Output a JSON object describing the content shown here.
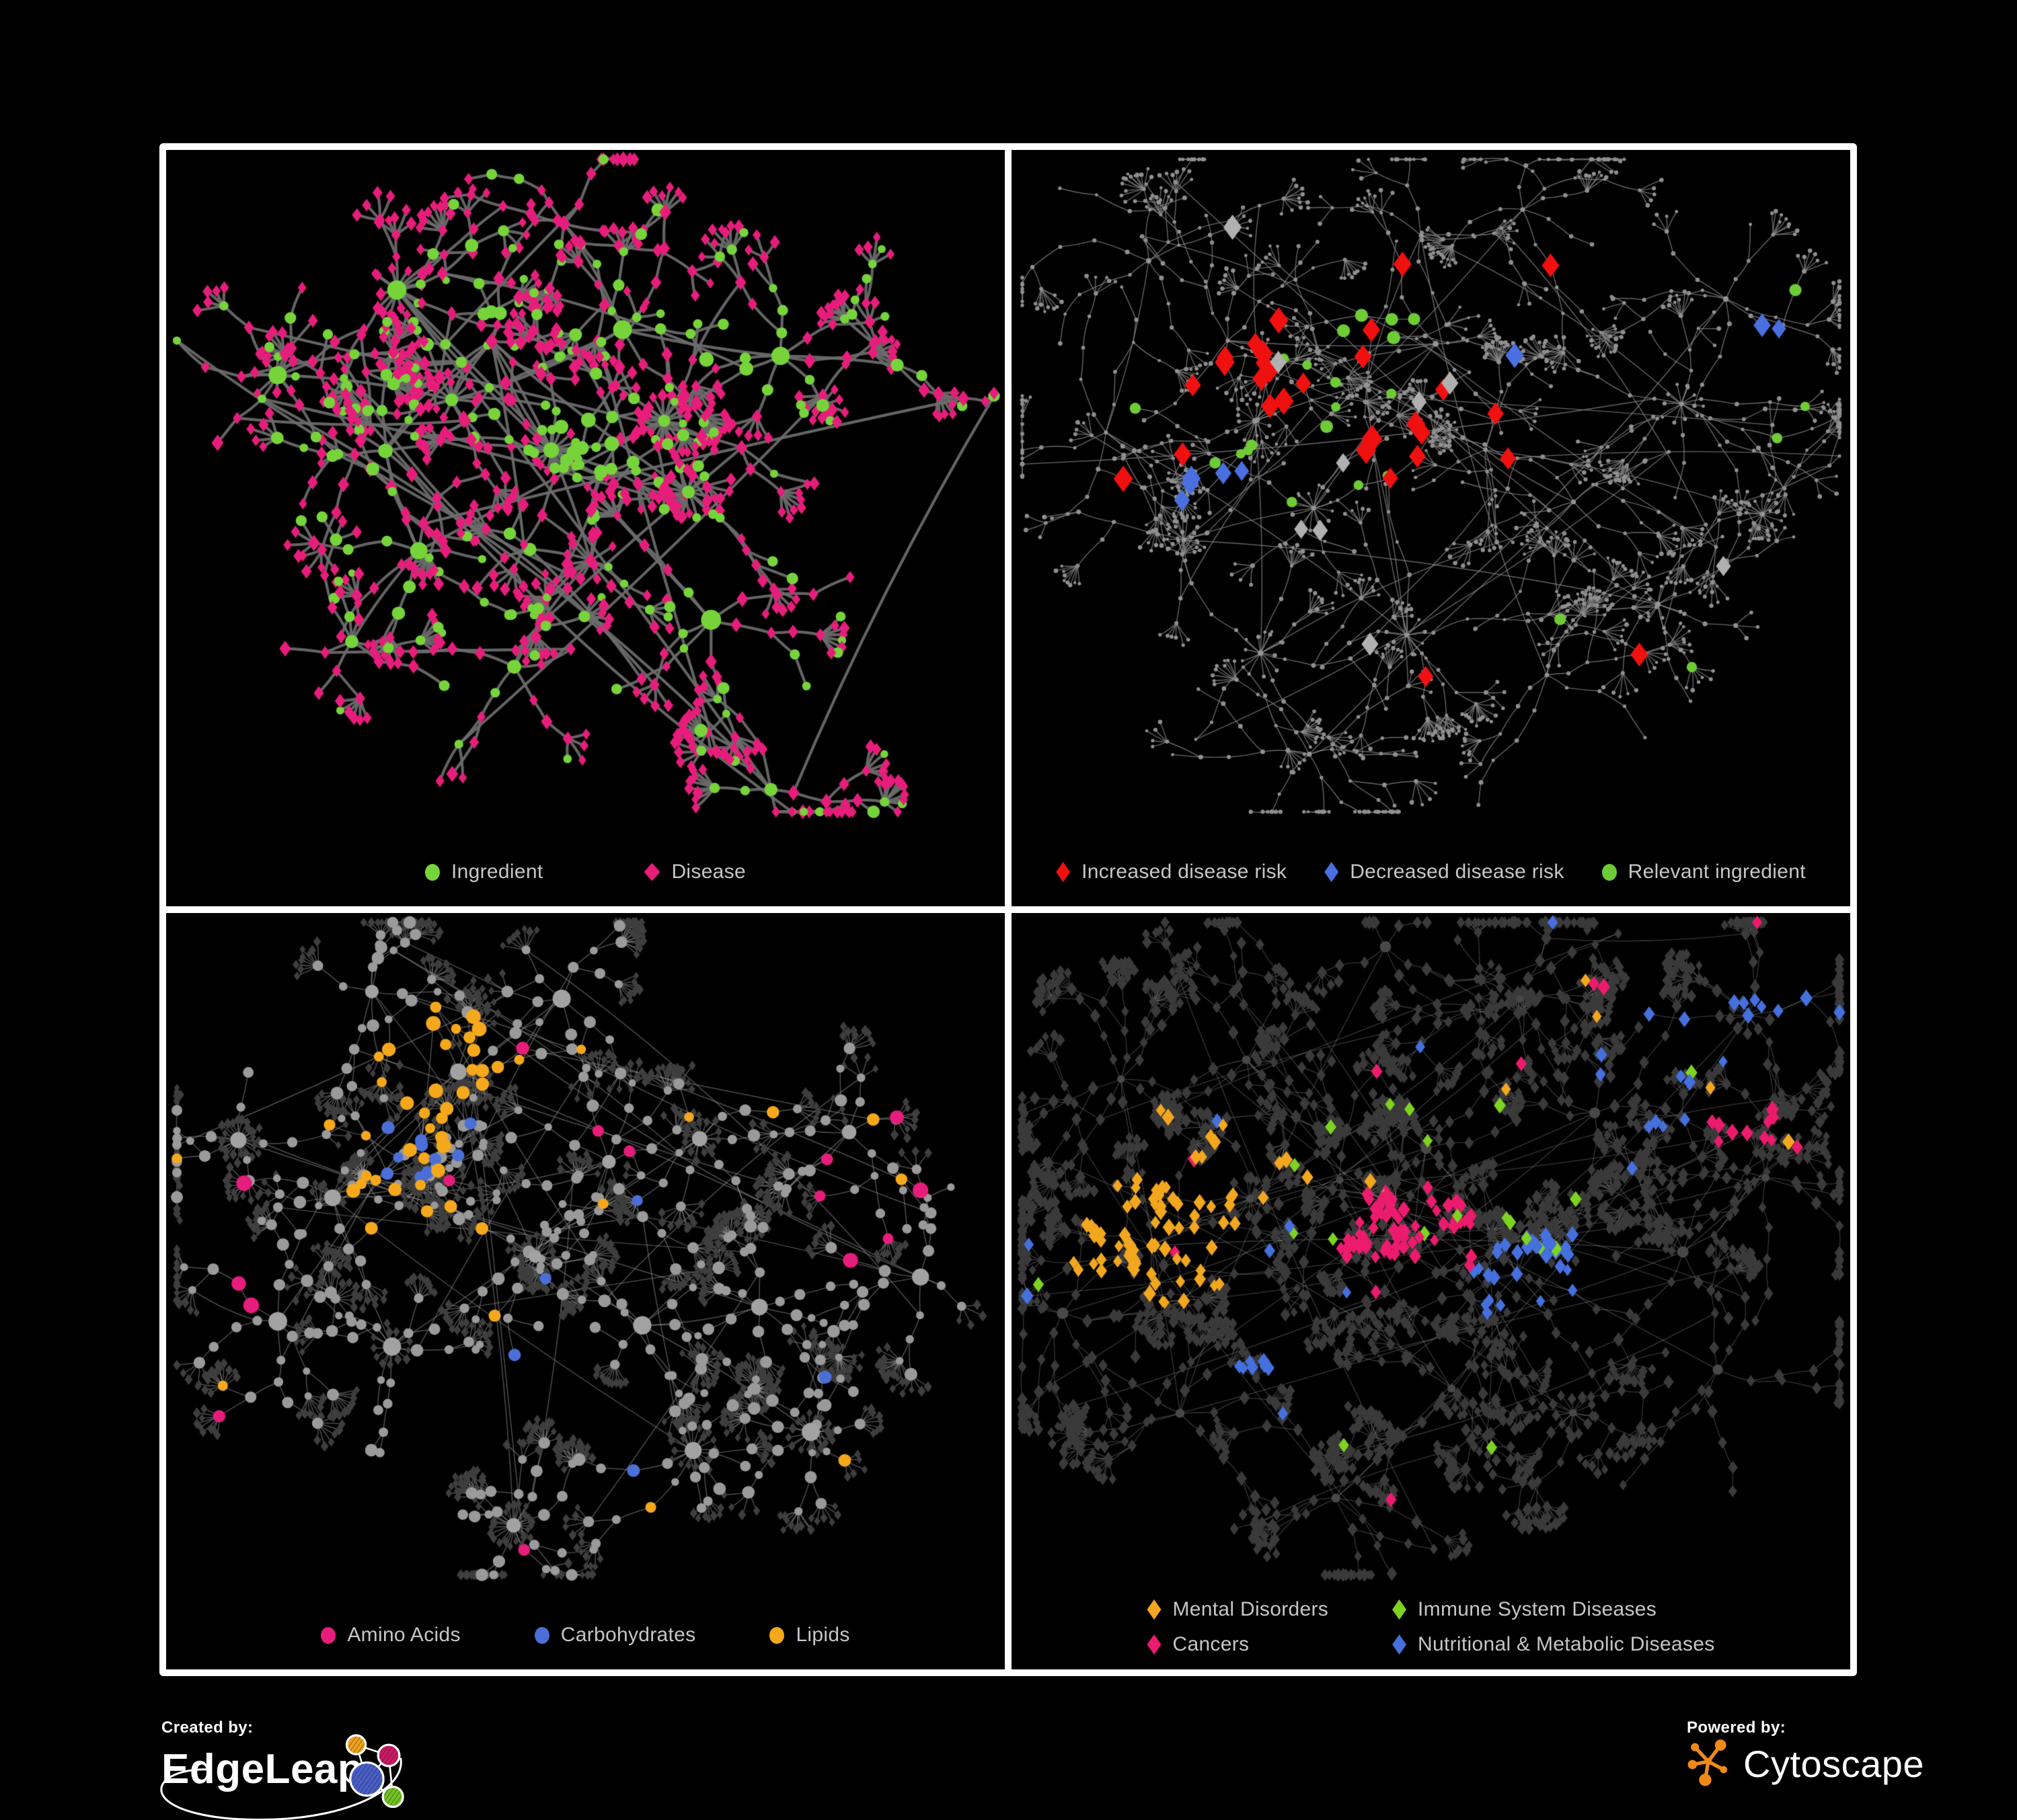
{
  "figure": {
    "background": "#000000",
    "panel_border_color": "#ffffff",
    "legend_text_color": "#c6c6c6"
  },
  "footer": {
    "created_by": {
      "label": "Created by:",
      "name": "EdgeLeap"
    },
    "powered_by": {
      "label": "Powered by:",
      "name": "Cytoscape"
    }
  },
  "panels": [
    {
      "name": "ingredient-disease-network",
      "legend": [
        {
          "label": "Ingredient",
          "shape": "circle",
          "color": "#77d33a"
        },
        {
          "label": "Disease",
          "shape": "diamond",
          "color": "#e71d7b"
        }
      ],
      "network": {
        "seed": 7,
        "hubs": [
          [
            0.4,
            0.3
          ],
          [
            0.25,
            0.45
          ],
          [
            0.34,
            0.38
          ],
          [
            0.46,
            0.46
          ],
          [
            0.3,
            0.6
          ],
          [
            0.55,
            0.28
          ],
          [
            0.5,
            0.62
          ],
          [
            0.63,
            0.52
          ],
          [
            0.42,
            0.78
          ],
          [
            0.28,
            0.2
          ],
          [
            0.6,
            0.4
          ],
          [
            0.74,
            0.32
          ],
          [
            0.88,
            0.33
          ],
          [
            0.72,
            0.96
          ],
          [
            0.66,
            0.7
          ],
          [
            0.22,
            0.74
          ],
          [
            0.47,
            0.1
          ],
          [
            0.13,
            0.33
          ]
        ],
        "branches": [
          4,
          7
        ],
        "steps": [
          2,
          4
        ],
        "seg": [
          32,
          62
        ],
        "fork": 0.26,
        "fanP": 0.5,
        "fan": [
          3,
          8
        ],
        "fanArc": 1.8,
        "ringP": 0.4,
        "ring": [
          8,
          18
        ],
        "leafDist": 32,
        "cross": 26,
        "edge": {
          "color": "#6c6c6c",
          "width": 4.2,
          "alpha": 0.92
        },
        "base": {
          "leaf": {
            "shape": "diamond",
            "color": "#e71d7b",
            "size": [
              6,
              8.5
            ]
          },
          "branch": {
            "shape": "diamond",
            "color": "#e71d7b",
            "size": [
              6.5,
              9.5
            ]
          },
          "hub": {
            "shape": "circle",
            "color": "#77d33a",
            "size": [
              9,
              15
            ]
          }
        },
        "mixes": [
          {
            "kinds": [
              "branch"
            ],
            "p": 0.32,
            "shape": "circle",
            "color": "#77d33a",
            "size": [
              6,
              10
            ]
          },
          {
            "kinds": [
              "leaf"
            ],
            "p": 0.14,
            "shape": "circle",
            "color": "#77d33a",
            "size": [
              5.5,
              8.5
            ]
          },
          {
            "kinds": [
              "hub"
            ],
            "p": 0.22,
            "shape": "diamond",
            "color": "#e71d7b",
            "size": [
              9,
              12
            ]
          }
        ],
        "overlays": [
          {
            "shape": "circle",
            "color": "#77d33a",
            "size": [
              6,
              11
            ],
            "clusters": [
              [
                0.5,
                0.44,
                0.055,
                0.85
              ],
              [
                0.67,
                0.29,
                0.05,
                0.7
              ]
            ],
            "scatter": 0
          }
        ]
      }
    },
    {
      "name": "disease-risk-network",
      "legend": [
        {
          "label": "Increased disease risk",
          "shape": "diamond",
          "color": "#f01010"
        },
        {
          "label": "Decreased disease risk",
          "shape": "diamond",
          "color": "#4a6fe0"
        },
        {
          "label": "Relevant ingredient",
          "shape": "circle",
          "color": "#6ecb35"
        }
      ],
      "network": {
        "seed": 23,
        "hubs": [
          [
            0.3,
            0.42
          ],
          [
            0.42,
            0.36
          ],
          [
            0.51,
            0.3
          ],
          [
            0.36,
            0.53
          ],
          [
            0.25,
            0.3
          ],
          [
            0.56,
            0.46
          ],
          [
            0.68,
            0.52
          ],
          [
            0.48,
            0.13
          ],
          [
            0.2,
            0.6
          ],
          [
            0.8,
            0.38
          ],
          [
            0.46,
            0.74
          ],
          [
            0.63,
            0.8
          ],
          [
            0.12,
            0.42
          ],
          [
            0.86,
            0.22
          ],
          [
            0.3,
            0.76
          ],
          [
            0.76,
            0.68
          ],
          [
            0.6,
            0.08
          ],
          [
            0.16,
            0.16
          ],
          [
            0.35,
            0.92
          ],
          [
            0.9,
            0.55
          ]
        ],
        "branches": [
          4,
          7
        ],
        "steps": [
          3,
          5
        ],
        "seg": [
          30,
          56
        ],
        "fork": 0.3,
        "fanP": 0.55,
        "fan": [
          3,
          9
        ],
        "fanArc": 1.6,
        "ringP": 0.35,
        "ring": [
          8,
          16
        ],
        "leafDist": 28,
        "cross": 18,
        "edge": {
          "color": "#8a8a8a",
          "width": 1.4,
          "alpha": 0.75
        },
        "base": {
          "leaf": {
            "shape": "circle",
            "color": "#8f8f8f",
            "size": [
              2.2,
              3.4
            ]
          },
          "branch": {
            "shape": "circle",
            "color": "#8f8f8f",
            "size": [
              2.4,
              3.6
            ]
          },
          "hub": {
            "shape": "circle",
            "color": "#949494",
            "size": [
              3,
              4.6
            ]
          }
        },
        "mixes": [],
        "overlays": [
          {
            "shape": "diamond",
            "color": "#f01010",
            "size": [
              12,
              16
            ],
            "clusters": [
              [
                0.34,
                0.4,
                0.16,
                0.22
              ],
              [
                0.52,
                0.44,
                0.1,
                0.15
              ]
            ],
            "scatter": 5,
            "kinds": [
              "branch",
              "hub"
            ]
          },
          {
            "shape": "diamond",
            "color": "#4a6fe0",
            "size": [
              11,
              15
            ],
            "clusters": [
              [
                0.25,
                0.5,
                0.06,
                0.45
              ]
            ],
            "scatter": 2,
            "fixed": [
              [
                0.895,
                0.265
              ],
              [
                0.915,
                0.27
              ]
            ],
            "kinds": [
              "branch",
              "hub"
            ]
          },
          {
            "shape": "diamond",
            "color": "#b0b0b0",
            "size": [
              11,
              15
            ],
            "clusters": [
              [
                0.42,
                0.46,
                0.18,
                0.05
              ]
            ],
            "scatter": 4,
            "kinds": [
              "branch",
              "hub"
            ]
          },
          {
            "shape": "circle",
            "color": "#6ecb35",
            "size": [
              7,
              10
            ],
            "clusters": [
              [
                0.35,
                0.4,
                0.22,
                0.1
              ]
            ],
            "scatter": 6,
            "kinds": [
              "branch",
              "hub"
            ]
          }
        ]
      }
    },
    {
      "name": "macronutrient-network",
      "legend": [
        {
          "label": "Amino Acids",
          "shape": "circle",
          "color": "#e71d7b"
        },
        {
          "label": "Carbohydrates",
          "shape": "circle",
          "color": "#4b6fd6"
        },
        {
          "label": "Lipids",
          "shape": "circle",
          "color": "#f5a81c"
        }
      ],
      "network": {
        "seed": 41,
        "hubs": [
          [
            0.19,
            0.43
          ],
          [
            0.3,
            0.41
          ],
          [
            0.34,
            0.24
          ],
          [
            0.43,
            0.52
          ],
          [
            0.28,
            0.65
          ],
          [
            0.52,
            0.38
          ],
          [
            0.64,
            0.33
          ],
          [
            0.57,
            0.63
          ],
          [
            0.42,
            0.92
          ],
          [
            0.7,
            0.6
          ],
          [
            0.82,
            0.33
          ],
          [
            0.14,
            0.62
          ],
          [
            0.48,
            0.13
          ],
          [
            0.25,
            0.13
          ],
          [
            0.62,
            0.82
          ],
          [
            0.78,
            0.78
          ],
          [
            0.9,
            0.55
          ],
          [
            0.08,
            0.35
          ]
        ],
        "branches": [
          5,
          8
        ],
        "steps": [
          2,
          4
        ],
        "seg": [
          30,
          58
        ],
        "fork": 0.3,
        "fanP": 0.6,
        "fan": [
          4,
          10
        ],
        "fanArc": 1.9,
        "ringP": 0.5,
        "ring": [
          12,
          28
        ],
        "leafDist": 28,
        "cross": 28,
        "edge": {
          "color": "#9b9b9b",
          "width": 1.5,
          "alpha": 0.5
        },
        "base": {
          "leaf": {
            "shape": "diamond",
            "color": "#3e3e3e",
            "size": [
              4.5,
              6.5
            ]
          },
          "branch": {
            "shape": "circle",
            "color": "#9a9a9a",
            "size": [
              5.5,
              9.5
            ]
          },
          "hub": {
            "shape": "circle",
            "color": "#a2a2a2",
            "size": [
              9,
              14
            ]
          }
        },
        "mixes": [],
        "overlays": [
          {
            "shape": "circle",
            "color": "#f5a81c",
            "size": [
              7,
              11
            ],
            "clusters": [
              [
                0.34,
                0.23,
                0.09,
                0.8
              ],
              [
                0.3,
                0.4,
                0.14,
                0.22
              ]
            ],
            "scatter": 16,
            "kinds": [
              "branch",
              "hub"
            ]
          },
          {
            "shape": "circle",
            "color": "#4b6fd6",
            "size": [
              7,
              10
            ],
            "clusters": [
              [
                0.3,
                0.34,
                0.07,
                0.3
              ]
            ],
            "scatter": 6,
            "kinds": [
              "branch",
              "hub"
            ]
          },
          {
            "shape": "circle",
            "color": "#e71d7b",
            "size": [
              8,
              12
            ],
            "clusters": [],
            "scatter": 15,
            "kinds": [
              "branch",
              "hub"
            ]
          }
        ]
      }
    },
    {
      "name": "disease-category-network",
      "legend": [
        {
          "label": "Mental Disorders",
          "shape": "diamond",
          "color": "#f2a71f"
        },
        {
          "label": "Immune System Diseases",
          "shape": "diamond",
          "color": "#7ed321"
        },
        {
          "label": "Cancers",
          "shape": "diamond",
          "color": "#ed1b6d"
        },
        {
          "label": "Nutritional & Metabolic Diseases",
          "shape": "diamond",
          "color": "#4570dd"
        }
      ],
      "network": {
        "seed": 59,
        "hubs": [
          [
            0.17,
            0.5
          ],
          [
            0.29,
            0.44
          ],
          [
            0.4,
            0.4
          ],
          [
            0.5,
            0.36
          ],
          [
            0.47,
            0.53
          ],
          [
            0.61,
            0.54
          ],
          [
            0.7,
            0.3
          ],
          [
            0.8,
            0.52
          ],
          [
            0.28,
            0.22
          ],
          [
            0.52,
            0.72
          ],
          [
            0.2,
            0.76
          ],
          [
            0.68,
            0.76
          ],
          [
            0.88,
            0.15
          ],
          [
            0.9,
            0.4
          ],
          [
            0.12,
            0.25
          ],
          [
            0.38,
            0.88
          ],
          [
            0.6,
            0.13
          ],
          [
            0.85,
            0.7
          ],
          [
            0.45,
            0.06
          ],
          [
            0.05,
            0.6
          ]
        ],
        "branches": [
          5,
          8
        ],
        "steps": [
          3,
          5
        ],
        "seg": [
          28,
          54
        ],
        "fork": 0.32,
        "fanP": 0.6,
        "fan": [
          4,
          10
        ],
        "fanArc": 1.8,
        "ringP": 0.45,
        "ring": [
          10,
          22
        ],
        "leafDist": 26,
        "cross": 26,
        "edge": {
          "color": "#aaaaaa",
          "width": 1.3,
          "alpha": 0.32
        },
        "base": {
          "leaf": {
            "shape": "diamond",
            "color": "#3a3a3a",
            "size": [
              5.5,
              8
            ]
          },
          "branch": {
            "shape": "diamond",
            "color": "#3a3a3a",
            "size": [
              6,
              8.5
            ]
          },
          "hub": {
            "shape": "circle",
            "color": "#484848",
            "size": [
              5.5,
              8.5
            ]
          }
        },
        "mixes": [],
        "overlays": [
          {
            "shape": "diamond",
            "color": "#f2a71f",
            "size": [
              7,
              10
            ],
            "clusters": [
              [
                0.17,
                0.5,
                0.1,
                0.85
              ],
              [
                0.27,
                0.4,
                0.09,
                0.25
              ]
            ],
            "scatter": 10
          },
          {
            "shape": "diamond",
            "color": "#ed1b6d",
            "size": [
              7,
              10
            ],
            "clusters": [
              [
                0.47,
                0.5,
                0.09,
                0.55
              ],
              [
                0.87,
                0.32,
                0.045,
                0.6
              ]
            ],
            "scatter": 9
          },
          {
            "shape": "diamond",
            "color": "#4570dd",
            "size": [
              7,
              10
            ],
            "clusters": [
              [
                0.62,
                0.56,
                0.075,
                0.6
              ],
              [
                0.78,
                0.24,
                0.09,
                0.3
              ],
              [
                0.9,
                0.12,
                0.05,
                0.5
              ],
              [
                0.3,
                0.72,
                0.05,
                0.25
              ]
            ],
            "scatter": 12
          },
          {
            "shape": "diamond",
            "color": "#7ed321",
            "size": [
              7,
              10
            ],
            "clusters": [
              [
                0.5,
                0.44,
                0.18,
                0.035
              ]
            ],
            "scatter": 5
          }
        ]
      }
    }
  ]
}
